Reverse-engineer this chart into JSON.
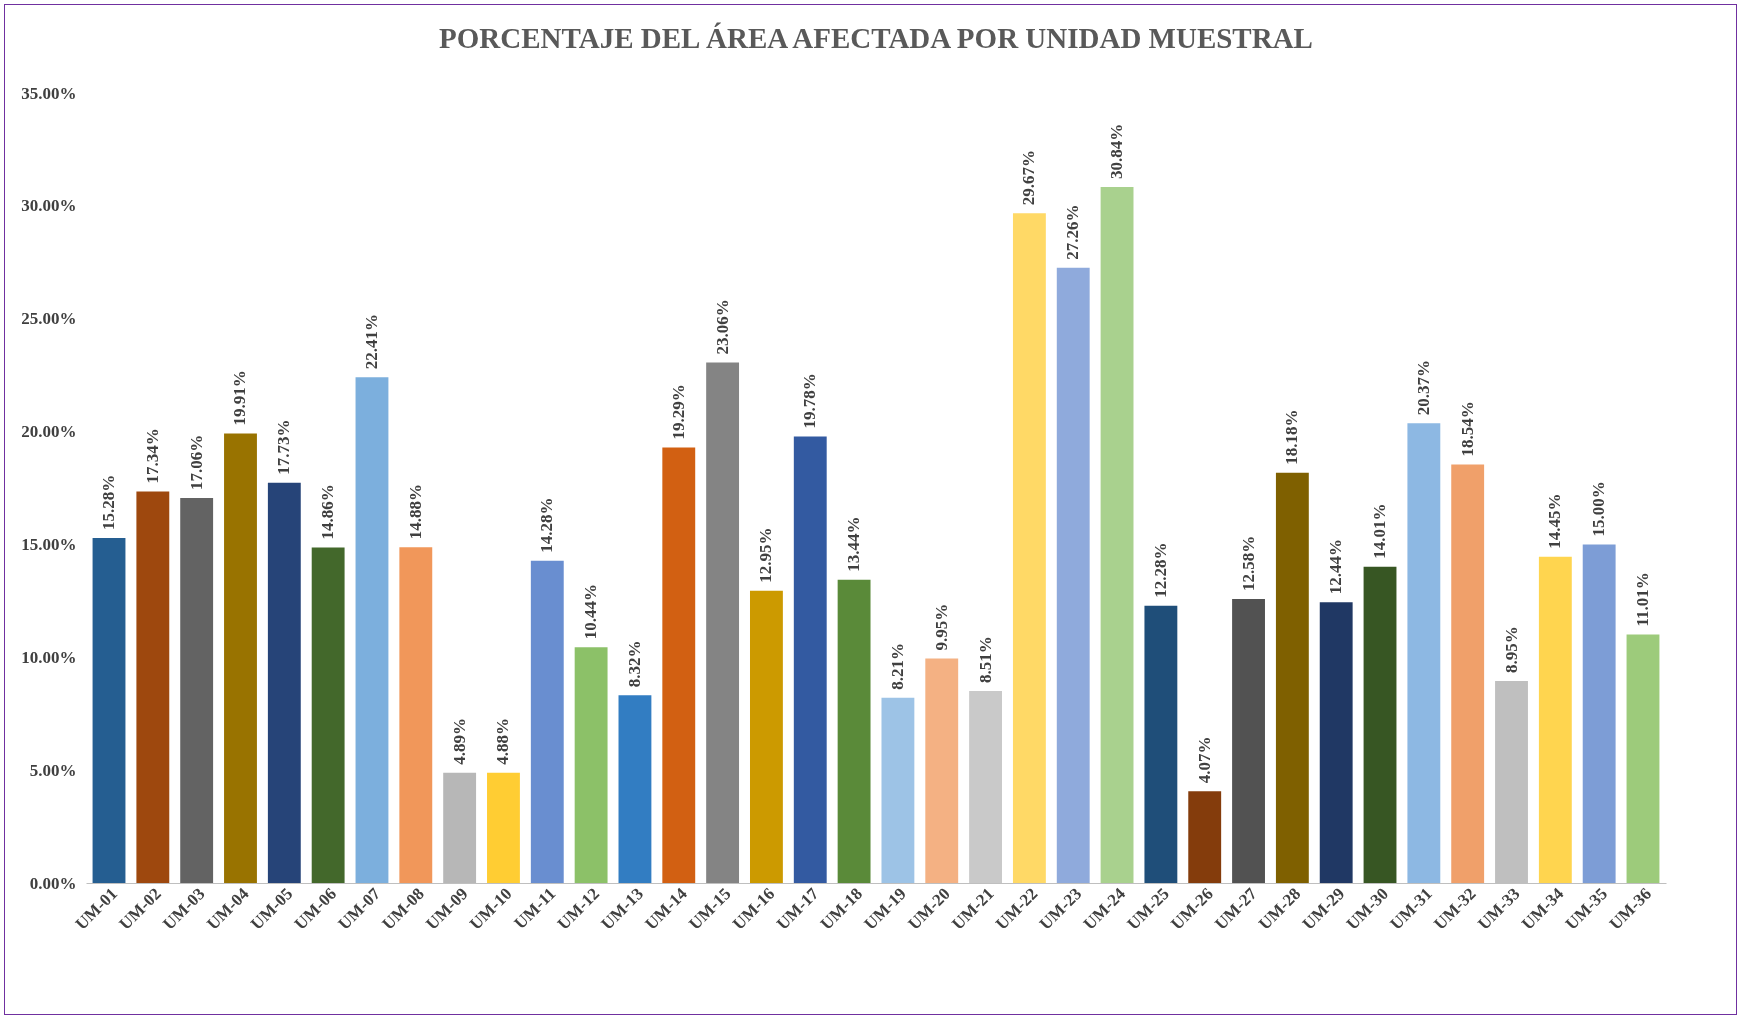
{
  "chart_data": {
    "type": "bar",
    "title": "PORCENTAJE DEL ÁREA AFECTADA POR UNIDAD MUESTRAL",
    "categories": [
      "UM-01",
      "UM-02",
      "UM-03",
      "UM-04",
      "UM-05",
      "UM-06",
      "UM-07",
      "UM-08",
      "UM-09",
      "UM-10",
      "UM-11",
      "UM-12",
      "UM-13",
      "UM-14",
      "UM-15",
      "UM-16",
      "UM-17",
      "UM-18",
      "UM-19",
      "UM-20",
      "UM-21",
      "UM-22",
      "UM-23",
      "UM-24",
      "UM-25",
      "UM-26",
      "UM-27",
      "UM-28",
      "UM-29",
      "UM-30",
      "UM-31",
      "UM-32",
      "UM-33",
      "UM-34",
      "UM-35",
      "UM-36"
    ],
    "values": [
      15.28,
      17.34,
      17.06,
      19.91,
      17.73,
      14.86,
      22.41,
      14.88,
      4.89,
      4.88,
      14.28,
      10.44,
      8.32,
      19.29,
      23.06,
      12.95,
      19.78,
      13.44,
      8.21,
      9.95,
      8.51,
      29.67,
      27.26,
      30.84,
      12.28,
      4.07,
      12.58,
      18.18,
      12.44,
      14.01,
      20.37,
      18.54,
      8.95,
      14.45,
      15.0,
      11.01
    ],
    "value_labels": [
      "15.28%",
      "17.34%",
      "17.06%",
      "19.91%",
      "17.73%",
      "14.86%",
      "22.41%",
      "14.88%",
      "4.89%",
      "4.88%",
      "14.28%",
      "10.44%",
      "8.32%",
      "19.29%",
      "23.06%",
      "12.95%",
      "19.78%",
      "13.44%",
      "8.21%",
      "9.95%",
      "8.51%",
      "29.67%",
      "27.26%",
      "30.84%",
      "12.28%",
      "4.07%",
      "12.58%",
      "18.18%",
      "12.44%",
      "14.01%",
      "20.37%",
      "18.54%",
      "8.95%",
      "14.45%",
      "15.00%",
      "11.01%"
    ],
    "colors": [
      "#255e91",
      "#9e480e",
      "#636363",
      "#997300",
      "#264478",
      "#43682b",
      "#7cafdd",
      "#f1975a",
      "#b7b7b7",
      "#ffcd33",
      "#698ed0",
      "#8cc168",
      "#327dc2",
      "#d26012",
      "#848484",
      "#cc9a00",
      "#335aa1",
      "#5a8a39",
      "#9dc3e6",
      "#f4b183",
      "#c9c9c9",
      "#ffd966",
      "#8faadc",
      "#a9d18e",
      "#1f4e79",
      "#843c0c",
      "#525252",
      "#7f6000",
      "#203864",
      "#375623",
      "#8db8e3",
      "#f0a06a",
      "#bfbfbf",
      "#ffd54f",
      "#7d9dd6",
      "#9dcb7b"
    ],
    "ylim": [
      0,
      35
    ],
    "yticks": [
      {
        "value": 0,
        "label": "0.00%"
      },
      {
        "value": 5,
        "label": "5.00%"
      },
      {
        "value": 10,
        "label": "10.00%"
      },
      {
        "value": 15,
        "label": "15.00%"
      },
      {
        "value": 20,
        "label": "20.00%"
      },
      {
        "value": 25,
        "label": "25.00%"
      },
      {
        "value": 30,
        "label": "30.00%"
      },
      {
        "value": 35,
        "label": "35.00%"
      }
    ],
    "grid": false
  }
}
